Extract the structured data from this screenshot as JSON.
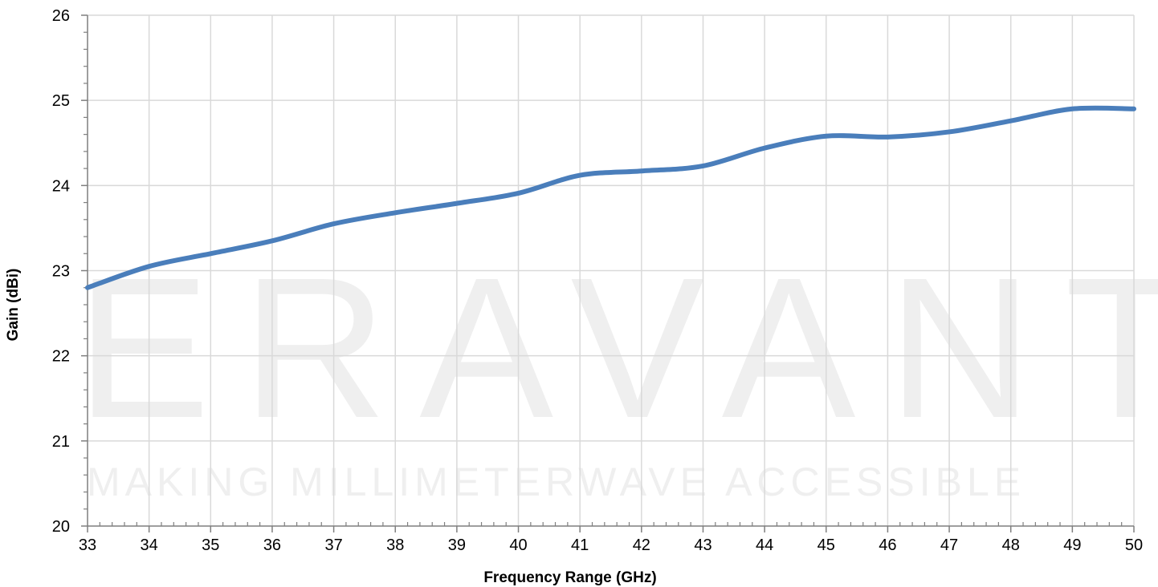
{
  "watermark": {
    "brand": "ERAVANT",
    "tagline": "MAKING MILLIMETERWAVE ACCESSIBLE"
  },
  "chart_data": {
    "type": "line",
    "title": "",
    "xlabel": "Frequency Range (GHz)",
    "ylabel": "Gain (dBi)",
    "xlim": [
      33,
      50
    ],
    "ylim": [
      20,
      26
    ],
    "x_ticks": [
      33,
      34,
      35,
      36,
      37,
      38,
      39,
      40,
      41,
      42,
      43,
      44,
      45,
      46,
      47,
      48,
      49,
      50
    ],
    "y_ticks": [
      20,
      21,
      22,
      23,
      24,
      25,
      26
    ],
    "grid": true,
    "line_color": "#4a7ebb",
    "series": [
      {
        "x": [
          33,
          34,
          35,
          36,
          37,
          38,
          39,
          40,
          41,
          42,
          43,
          44,
          45,
          46,
          47,
          48,
          49,
          50
        ],
        "values": [
          22.8,
          23.05,
          23.2,
          23.35,
          23.55,
          23.68,
          23.79,
          23.91,
          24.12,
          24.17,
          24.23,
          24.44,
          24.58,
          24.57,
          24.63,
          24.76,
          24.9,
          24.9
        ]
      }
    ]
  }
}
